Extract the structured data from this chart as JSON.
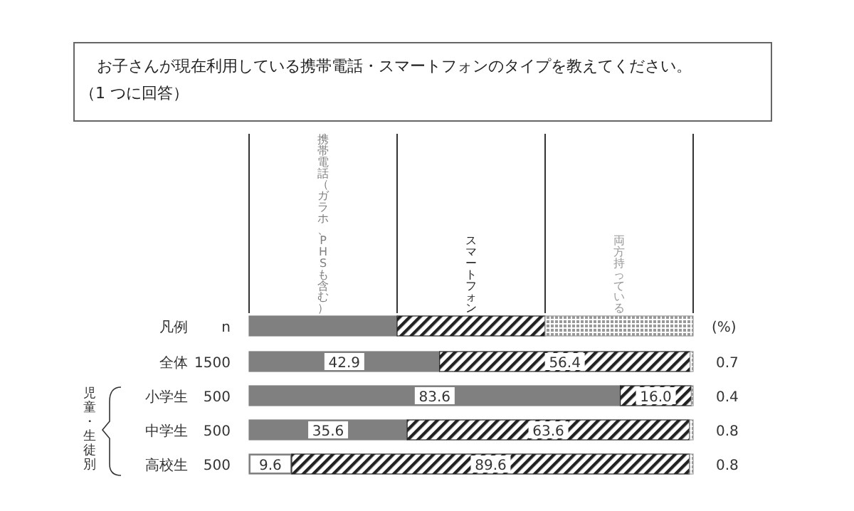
{
  "chart_data": {
    "type": "bar",
    "orientation": "horizontal",
    "stacked": true,
    "title": "お子さんが現在利用している携帯電話・スマートフォンのタイプを教えてください。",
    "subtitle": "（1 つに回答）",
    "legend_title": "凡例",
    "legend": "top",
    "categories": [
      "全体",
      "小学生",
      "中学生",
      "高校生"
    ],
    "series": [
      {
        "name": "携帯電話（ガラホ、PHSも含む）",
        "color": "#808080",
        "values": [
          42.9,
          83.6,
          35.6,
          9.6
        ],
        "value_labels": [
          "42.9",
          "83.6",
          "35.6",
          "9.6"
        ]
      },
      {
        "name": "スマートフォン",
        "color": "#222222",
        "values": [
          56.4,
          16.0,
          63.6,
          89.6
        ],
        "value_labels": [
          "56.4",
          "16.0",
          "63.6",
          "89.6"
        ]
      },
      {
        "name": "両方持っている",
        "color": "#999999",
        "values": [
          0.7,
          0.4,
          0.8,
          0.8
        ],
        "value_labels": [
          "0.7",
          "0.4",
          "0.8",
          "0.8"
        ]
      }
    ],
    "xlim": [
      0,
      100
    ],
    "annotations": [
      "n",
      "(%)",
      "児童・生徒別",
      "1500",
      "500",
      "500",
      "500"
    ]
  }
}
